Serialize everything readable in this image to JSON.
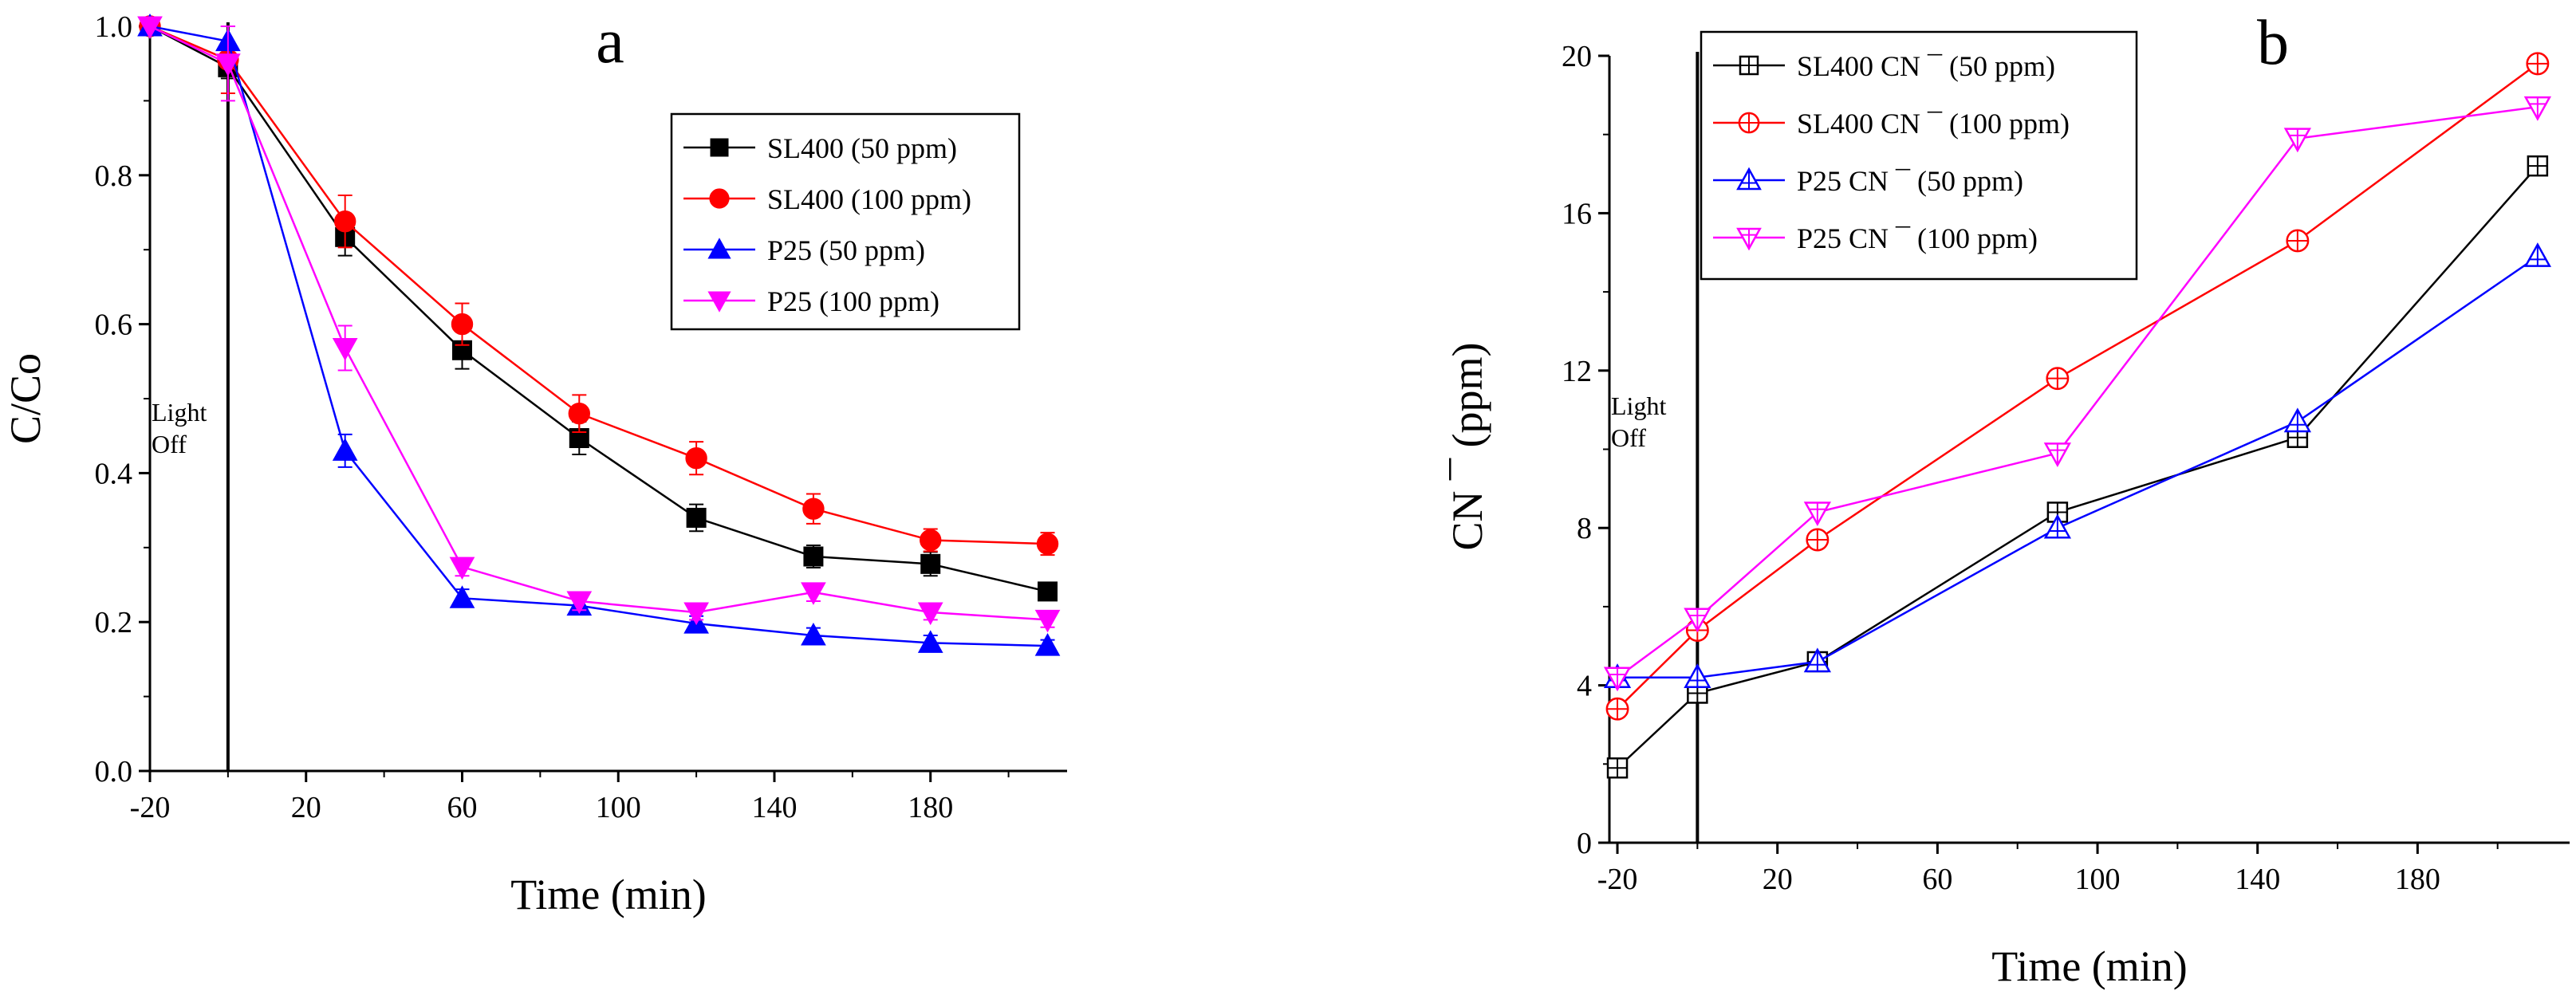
{
  "chart_data": [
    {
      "panel": "a",
      "type": "line",
      "panel_label": "a",
      "xlabel": "Time (min)",
      "ylabel": "C/Co",
      "xlim": [
        -20,
        215
      ],
      "ylim": [
        0,
        1.0
      ],
      "xticks": [
        -20,
        20,
        60,
        100,
        140,
        180
      ],
      "yticks": [
        0.0,
        0.2,
        0.4,
        0.6,
        0.8,
        1.0
      ],
      "ytick_labels": [
        "0.0",
        "0.2",
        "0.4",
        "0.6",
        "0.8",
        "1.0"
      ],
      "annotation_line_x": 0,
      "annotation_text": [
        "Light",
        "Off"
      ],
      "legend_position": "top-right",
      "series": [
        {
          "name": "SL400 (50 ppm)",
          "color": "#000000",
          "marker": "square",
          "filled": true,
          "x": [
            -20,
            0,
            30,
            60,
            90,
            120,
            150,
            180,
            210
          ],
          "y": [
            1.0,
            0.945,
            0.717,
            0.565,
            0.447,
            0.34,
            0.288,
            0.278,
            0.241
          ],
          "err": [
            0.0,
            0.015,
            0.025,
            0.025,
            0.022,
            0.018,
            0.015,
            0.016,
            0.01
          ]
        },
        {
          "name": "SL400 (100 ppm)",
          "color": "#ff0000",
          "marker": "circle",
          "filled": true,
          "x": [
            -20,
            0,
            30,
            60,
            90,
            120,
            150,
            180,
            210
          ],
          "y": [
            1.0,
            0.955,
            0.738,
            0.6,
            0.48,
            0.42,
            0.352,
            0.31,
            0.305
          ],
          "err": [
            0.0,
            0.045,
            0.035,
            0.028,
            0.025,
            0.022,
            0.02,
            0.015,
            0.015
          ]
        },
        {
          "name": "P25 (50 ppm)",
          "color": "#0000ff",
          "marker": "triangle-up",
          "filled": true,
          "x": [
            -20,
            0,
            30,
            60,
            90,
            120,
            150,
            180,
            210
          ],
          "y": [
            1.0,
            0.98,
            0.43,
            0.232,
            0.222,
            0.198,
            0.182,
            0.172,
            0.168
          ],
          "err": [
            0.0,
            0.02,
            0.022,
            0.012,
            0.01,
            0.01,
            0.01,
            0.01,
            0.008
          ]
        },
        {
          "name": "P25 (100 ppm)",
          "color": "#ff00ff",
          "marker": "triangle-down",
          "filled": true,
          "x": [
            -20,
            0,
            30,
            60,
            90,
            120,
            150,
            180,
            210
          ],
          "y": [
            1.0,
            0.95,
            0.568,
            0.274,
            0.228,
            0.213,
            0.24,
            0.213,
            0.203
          ],
          "err": [
            0.0,
            0.05,
            0.03,
            0.012,
            0.012,
            0.01,
            0.012,
            0.01,
            0.01
          ]
        }
      ]
    },
    {
      "panel": "b",
      "type": "line",
      "panel_label": "b",
      "xlabel": "Time (min)",
      "ylabel": "CN ¯ (ppm)",
      "xlim": [
        -22,
        218
      ],
      "ylim": [
        0,
        20
      ],
      "xticks": [
        -20,
        20,
        60,
        100,
        140,
        180
      ],
      "yticks": [
        0,
        4,
        8,
        12,
        16,
        20
      ],
      "ytick_labels": [
        "0",
        "4",
        "8",
        "12",
        "16",
        "20"
      ],
      "annotation_line_x": 0,
      "annotation_text": [
        "Light",
        "Off"
      ],
      "legend_position": "top-left",
      "series": [
        {
          "name": "SL400 CN ¯ (50 ppm)",
          "color": "#000000",
          "marker": "square",
          "filled": false,
          "x": [
            -20,
            0,
            30,
            90,
            150,
            210
          ],
          "y": [
            1.9,
            3.8,
            4.6,
            8.4,
            10.3,
            17.2
          ]
        },
        {
          "name": "SL400 CN ¯ (100 ppm)",
          "color": "#ff0000",
          "marker": "circle",
          "filled": false,
          "x": [
            -20,
            0,
            30,
            90,
            150,
            210
          ],
          "y": [
            3.4,
            5.4,
            7.7,
            11.8,
            15.3,
            19.8
          ]
        },
        {
          "name": "P25 CN ¯ (50 ppm)",
          "color": "#0000ff",
          "marker": "triangle-up",
          "filled": false,
          "x": [
            -20,
            0,
            30,
            90,
            150,
            210
          ],
          "y": [
            4.2,
            4.2,
            4.6,
            8.0,
            10.7,
            14.9
          ]
        },
        {
          "name": "P25 CN ¯ (100 ppm)",
          "color": "#ff00ff",
          "marker": "triangle-down",
          "filled": false,
          "x": [
            -20,
            0,
            30,
            90,
            150,
            210
          ],
          "y": [
            4.2,
            5.7,
            8.4,
            9.9,
            17.9,
            18.7
          ]
        }
      ]
    }
  ]
}
